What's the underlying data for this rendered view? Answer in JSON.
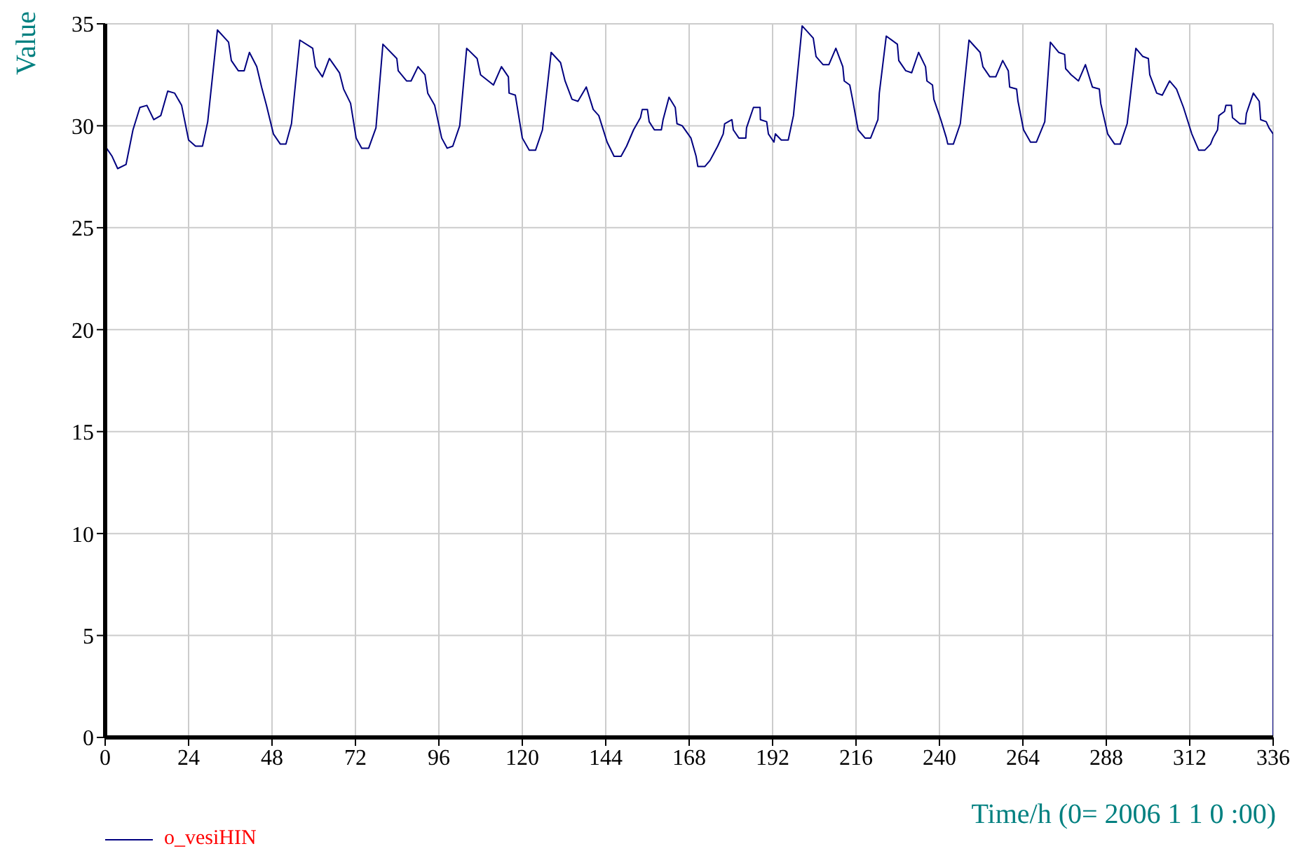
{
  "chart_data": {
    "type": "line",
    "xlabel": "Time/h (0= 2006 1 1 0 :00)",
    "ylabel": "Value",
    "xlim": [
      0,
      336
    ],
    "xticks": [
      0,
      24,
      48,
      72,
      96,
      120,
      144,
      168,
      192,
      216,
      240,
      264,
      288,
      312,
      336
    ],
    "ylim": [
      0,
      35
    ],
    "yticks": [
      0,
      5,
      10,
      15,
      20,
      25,
      30,
      35
    ],
    "grid": true,
    "legend": "bottom left",
    "marker": "none",
    "line_style": "solid",
    "x": [
      0.4,
      2,
      3.6,
      6,
      8,
      10,
      12,
      14,
      16,
      18,
      20,
      22,
      24,
      26,
      28,
      29.5,
      32.3,
      35.5,
      36.3,
      38.3,
      40,
      41.5,
      43.6,
      45,
      46.4,
      48.4,
      50.4,
      52,
      53.6,
      56,
      59.7,
      60.5,
      62.5,
      64.5,
      67.4,
      68.6,
      70.6,
      72.2,
      73.8,
      75.8,
      77.9,
      79.9,
      83.9,
      84.3,
      86.7,
      88,
      90,
      92,
      92.8,
      94.8,
      96.8,
      98.4,
      100,
      102,
      104,
      107,
      108,
      111.7,
      114,
      116,
      116.2,
      118,
      120,
      122,
      123.8,
      125.8,
      128.3,
      131,
      132.3,
      134.3,
      136,
      138.4,
      140.4,
      142,
      144.4,
      146.4,
      148.4,
      150,
      152,
      154,
      154.5,
      156,
      156.5,
      158,
      160,
      160.5,
      162.2,
      164,
      164.5,
      166,
      168.5,
      170,
      170.5,
      172.5,
      174,
      176.2,
      177.8,
      178.2,
      180.3,
      180.7,
      182.3,
      184.3,
      184.5,
      186.5,
      188.4,
      188.5,
      190.3,
      190.8,
      192.4,
      192.8,
      194.5,
      196.5,
      198,
      200.5,
      203.7,
      204.5,
      206.5,
      208.2,
      210.2,
      212.2,
      212.6,
      214.2,
      215,
      216.6,
      218.6,
      220.2,
      222.3,
      222.7,
      224.7,
      227.9,
      228.3,
      230.3,
      232,
      234,
      236,
      236.4,
      238,
      238.4,
      240.4,
      242,
      242.4,
      244,
      246,
      248.5,
      251.7,
      252.5,
      254.5,
      256.2,
      258.2,
      259.8,
      260.2,
      262.2,
      262.6,
      264.2,
      266.2,
      267.9,
      270.3,
      271.9,
      274.3,
      276,
      276.3,
      277.9,
      280,
      282,
      284,
      286,
      286.4,
      288.4,
      290.4,
      292,
      294,
      296.5,
      298.5,
      300.1,
      300.5,
      302.5,
      304.1,
      306.2,
      308.2,
      310.2,
      312.6,
      314.6,
      316.3,
      318,
      318.7,
      320,
      320.4,
      322,
      322.4,
      324,
      324.3,
      326.4,
      328,
      328.3,
      330.3,
      332,
      332.4,
      334,
      334.8,
      336,
      336
    ],
    "series": [
      {
        "name": "o_vesiHIN",
        "color": "#000080",
        "values": [
          28.9,
          28.5,
          27.9,
          28.1,
          29.8,
          30.9,
          31,
          30.3,
          30.5,
          31.7,
          31.6,
          31,
          29.3,
          29,
          29,
          30.2,
          34.7,
          34.1,
          33.2,
          32.7,
          32.7,
          33.6,
          32.9,
          31.9,
          31,
          29.6,
          29.1,
          29.1,
          30.1,
          34.2,
          33.8,
          32.9,
          32.4,
          33.3,
          32.6,
          31.8,
          31.1,
          29.4,
          28.9,
          28.9,
          29.9,
          34,
          33.3,
          32.7,
          32.2,
          32.2,
          32.9,
          32.5,
          31.6,
          31,
          29.4,
          28.9,
          29,
          30,
          33.8,
          33.3,
          32.5,
          32,
          32.9,
          32.4,
          31.6,
          31.5,
          29.4,
          28.8,
          28.8,
          29.8,
          33.6,
          33.1,
          32.2,
          31.3,
          31.2,
          31.9,
          30.8,
          30.5,
          29.2,
          28.5,
          28.5,
          29,
          29.8,
          30.4,
          30.8,
          30.8,
          30.2,
          29.8,
          29.8,
          30.3,
          31.4,
          30.9,
          30.1,
          30,
          29.4,
          28.5,
          28,
          28,
          28.3,
          29,
          29.6,
          30.1,
          30.3,
          29.8,
          29.4,
          29.4,
          29.9,
          30.9,
          30.9,
          30.3,
          30.2,
          29.6,
          29.2,
          29.6,
          29.3,
          29.3,
          30.5,
          34.9,
          34.3,
          33.4,
          33,
          33,
          33.8,
          32.9,
          32.2,
          32,
          31.3,
          29.8,
          29.4,
          29.4,
          30.3,
          31.6,
          34.4,
          34,
          33.2,
          32.7,
          32.6,
          33.6,
          32.9,
          32.2,
          32,
          31.3,
          30.3,
          29.4,
          29.1,
          29.1,
          30.1,
          34.2,
          33.6,
          32.9,
          32.4,
          32.4,
          33.2,
          32.7,
          31.9,
          31.8,
          31.2,
          29.8,
          29.2,
          29.2,
          30.2,
          34.1,
          33.6,
          33.5,
          32.8,
          32.5,
          32.2,
          33,
          31.9,
          31.8,
          31.1,
          29.6,
          29.1,
          29.1,
          30.1,
          33.8,
          33.4,
          33.3,
          32.5,
          31.6,
          31.5,
          32.2,
          31.8,
          30.9,
          29.6,
          28.8,
          28.8,
          29.1,
          29.4,
          29.8,
          30.5,
          30.7,
          31,
          31,
          30.4,
          30.1,
          30.1,
          30.6,
          31.6,
          31.2,
          30.3,
          30.2,
          29.9,
          29.6,
          0
        ]
      }
    ]
  }
}
